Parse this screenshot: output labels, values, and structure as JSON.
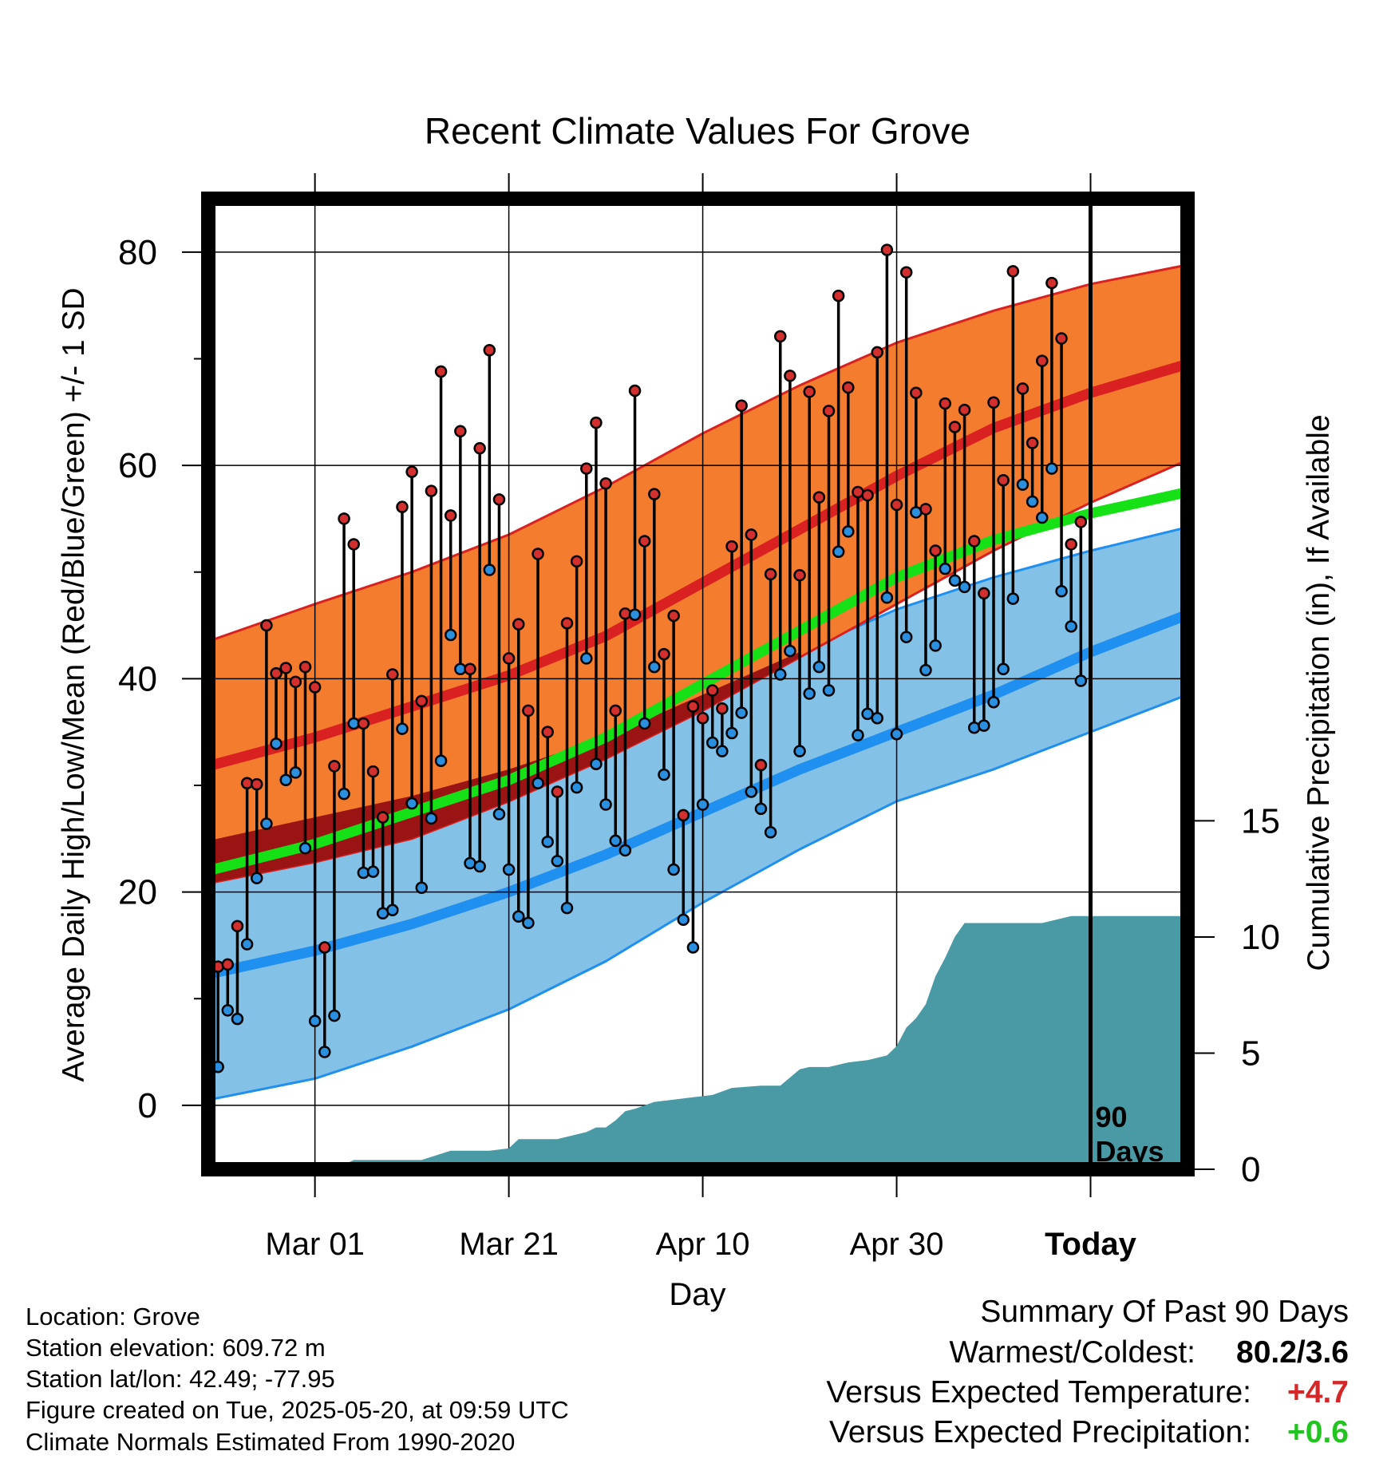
{
  "chart_data": {
    "type": "line",
    "title": "Recent Climate Values For Grove",
    "xlabel": "Day",
    "ylabel": "Average Daily High/Low/Mean (Red/Blue/Green) +/- 1 SD",
    "y2label": "Cumulative Precipitation (in), If Available",
    "x_tick_labels": [
      "Mar 01",
      "Mar 21",
      "Apr 10",
      "Apr 30",
      "Today"
    ],
    "x_tick_days": [
      10,
      30,
      50,
      70,
      90
    ],
    "xlim": [
      -1,
      100
    ],
    "ylim": [
      -6,
      85
    ],
    "y_ticks": [
      0,
      20,
      40,
      60,
      80
    ],
    "y_minor_ticks": [
      10,
      30,
      50,
      70
    ],
    "y2_ticks": [
      0,
      5,
      10,
      15
    ],
    "y2_scale_per_degree": 0.4591,
    "grid": true,
    "today_marker": {
      "day": 90,
      "label_line1": "90",
      "label_line2": "Days"
    },
    "normals": {
      "days": [
        -1,
        10,
        20,
        30,
        40,
        50,
        60,
        70,
        80,
        90,
        100
      ],
      "high_mean": [
        31.8,
        34.5,
        37.4,
        40.3,
        44.0,
        49.0,
        54.0,
        59.0,
        63.5,
        66.8,
        69.5
      ],
      "high_upper": [
        43.5,
        47.0,
        50.0,
        53.5,
        58.0,
        63.0,
        67.5,
        71.5,
        74.5,
        77.0,
        78.8
      ],
      "high_lower": [
        20.8,
        22.8,
        25.0,
        28.5,
        32.5,
        37.0,
        42.0,
        47.0,
        52.0,
        56.5,
        60.5
      ],
      "low_mean": [
        12.3,
        14.5,
        17.0,
        20.0,
        23.5,
        27.5,
        31.5,
        35.0,
        38.5,
        42.5,
        46.0
      ],
      "low_upper": [
        24.8,
        27.0,
        29.0,
        31.5,
        34.5,
        38.5,
        42.5,
        46.5,
        49.5,
        52.0,
        54.2
      ],
      "low_lower": [
        0.5,
        2.5,
        5.5,
        9.0,
        13.5,
        19.0,
        24.0,
        28.5,
        31.5,
        35.0,
        38.5
      ],
      "mean": [
        22.0,
        24.5,
        27.5,
        30.5,
        34.5,
        39.5,
        44.5,
        49.5,
        53.0,
        55.5,
        57.5
      ]
    },
    "daily": {
      "high": [
        13.0,
        13.2,
        16.8,
        30.2,
        30.1,
        45.0,
        40.5,
        41.0,
        39.7,
        41.1,
        39.2,
        14.8,
        31.8,
        55.0,
        52.6,
        35.8,
        31.3,
        27.0,
        40.4,
        56.1,
        59.4,
        37.9,
        57.6,
        68.8,
        55.3,
        63.2,
        40.9,
        61.6,
        70.8,
        56.8,
        41.9,
        45.1,
        37.0,
        51.7,
        35.0,
        29.4,
        45.2,
        51.0,
        59.7,
        64.0,
        58.3,
        37.0,
        46.1,
        67.0,
        52.9,
        57.3,
        42.3,
        45.9,
        27.2,
        37.4,
        36.3,
        38.9,
        37.2,
        52.4,
        65.6,
        53.5,
        31.9,
        49.8,
        72.1,
        68.4,
        49.7,
        66.9,
        57.0,
        65.1,
        75.9,
        67.3,
        57.5,
        57.2,
        70.6,
        80.2,
        56.3,
        78.1,
        66.8,
        55.9,
        52.0,
        65.8,
        63.6,
        65.2,
        52.9,
        48.0,
        65.9,
        58.6,
        78.2,
        67.2,
        62.1,
        69.8,
        77.1,
        71.9,
        52.6,
        54.7
      ],
      "low": [
        3.6,
        8.9,
        8.1,
        15.1,
        21.3,
        26.4,
        33.9,
        30.5,
        31.2,
        24.1,
        7.9,
        5.0,
        8.4,
        29.2,
        35.8,
        21.8,
        21.9,
        18.0,
        18.3,
        35.3,
        28.3,
        20.4,
        26.9,
        32.3,
        44.1,
        40.9,
        22.7,
        22.4,
        50.2,
        27.3,
        22.1,
        17.7,
        17.1,
        30.2,
        24.7,
        22.9,
        18.5,
        29.8,
        41.9,
        32.0,
        28.2,
        24.8,
        23.9,
        46.0,
        35.8,
        41.1,
        31.0,
        22.1,
        17.4,
        14.8,
        28.2,
        34.0,
        33.2,
        34.9,
        36.8,
        29.4,
        27.8,
        25.6,
        40.4,
        42.6,
        33.2,
        38.6,
        41.1,
        38.9,
        51.9,
        53.8,
        34.7,
        36.7,
        36.3,
        47.6,
        34.8,
        43.9,
        55.6,
        40.8,
        43.1,
        50.3,
        49.2,
        48.6,
        35.4,
        35.6,
        37.8,
        40.9,
        47.5,
        58.2,
        56.6,
        55.1,
        59.7,
        48.2,
        44.9,
        39.8
      ]
    },
    "precip": {
      "days": [
        -1,
        7,
        9,
        10,
        13,
        14,
        21,
        24,
        25,
        28,
        30,
        31,
        35,
        36,
        38,
        39,
        40,
        41,
        42,
        43,
        45,
        47,
        49,
        51,
        53,
        56,
        58,
        60,
        61,
        63,
        65,
        67,
        69,
        70,
        71,
        72,
        73,
        74,
        75,
        76,
        77,
        79,
        83,
        85,
        86,
        88,
        91,
        100
      ],
      "totals": [
        0.0,
        0.0,
        0.1,
        0.2,
        0.2,
        0.4,
        0.4,
        0.8,
        0.8,
        0.8,
        0.9,
        1.3,
        1.3,
        1.4,
        1.6,
        1.8,
        1.8,
        2.1,
        2.5,
        2.6,
        2.9,
        3.0,
        3.1,
        3.2,
        3.5,
        3.6,
        3.6,
        4.3,
        4.4,
        4.4,
        4.6,
        4.7,
        4.9,
        5.3,
        6.1,
        6.5,
        7.1,
        8.3,
        9.1,
        10.0,
        10.6,
        10.6,
        10.6,
        10.6,
        10.7,
        10.9,
        10.9,
        10.9
      ]
    }
  },
  "info": {
    "location": "Location: Grove",
    "elevation": "Station elevation: 609.72 m",
    "latlon": "Station lat/lon: 42.49; -77.95",
    "created": "Figure created on Tue, 2025-05-20, at 09:59 UTC",
    "normals": "Climate Normals Estimated From 1990-2020"
  },
  "summary": {
    "heading": "Summary Of Past 90 Days",
    "warm_cold_label": "Warmest/Coldest:",
    "warm_cold_value": "80.2/3.6",
    "temp_label": "Versus Expected Temperature:",
    "temp_value": "+4.7",
    "temp_color": "#d62728",
    "precip_label": "Versus Expected Precipitation:",
    "precip_value": "+0.6",
    "precip_color": "#22c41f"
  },
  "colors": {
    "high_band": "#f47c2f",
    "high_line": "#d92121",
    "low_band": "#84c1e6",
    "low_line": "#1f8ff0",
    "mean_line": "#16e016",
    "overlap": "#9b1414",
    "precip": "#4a9aa5",
    "high_dot": "#d32f2f",
    "low_dot": "#2a8fdf"
  }
}
